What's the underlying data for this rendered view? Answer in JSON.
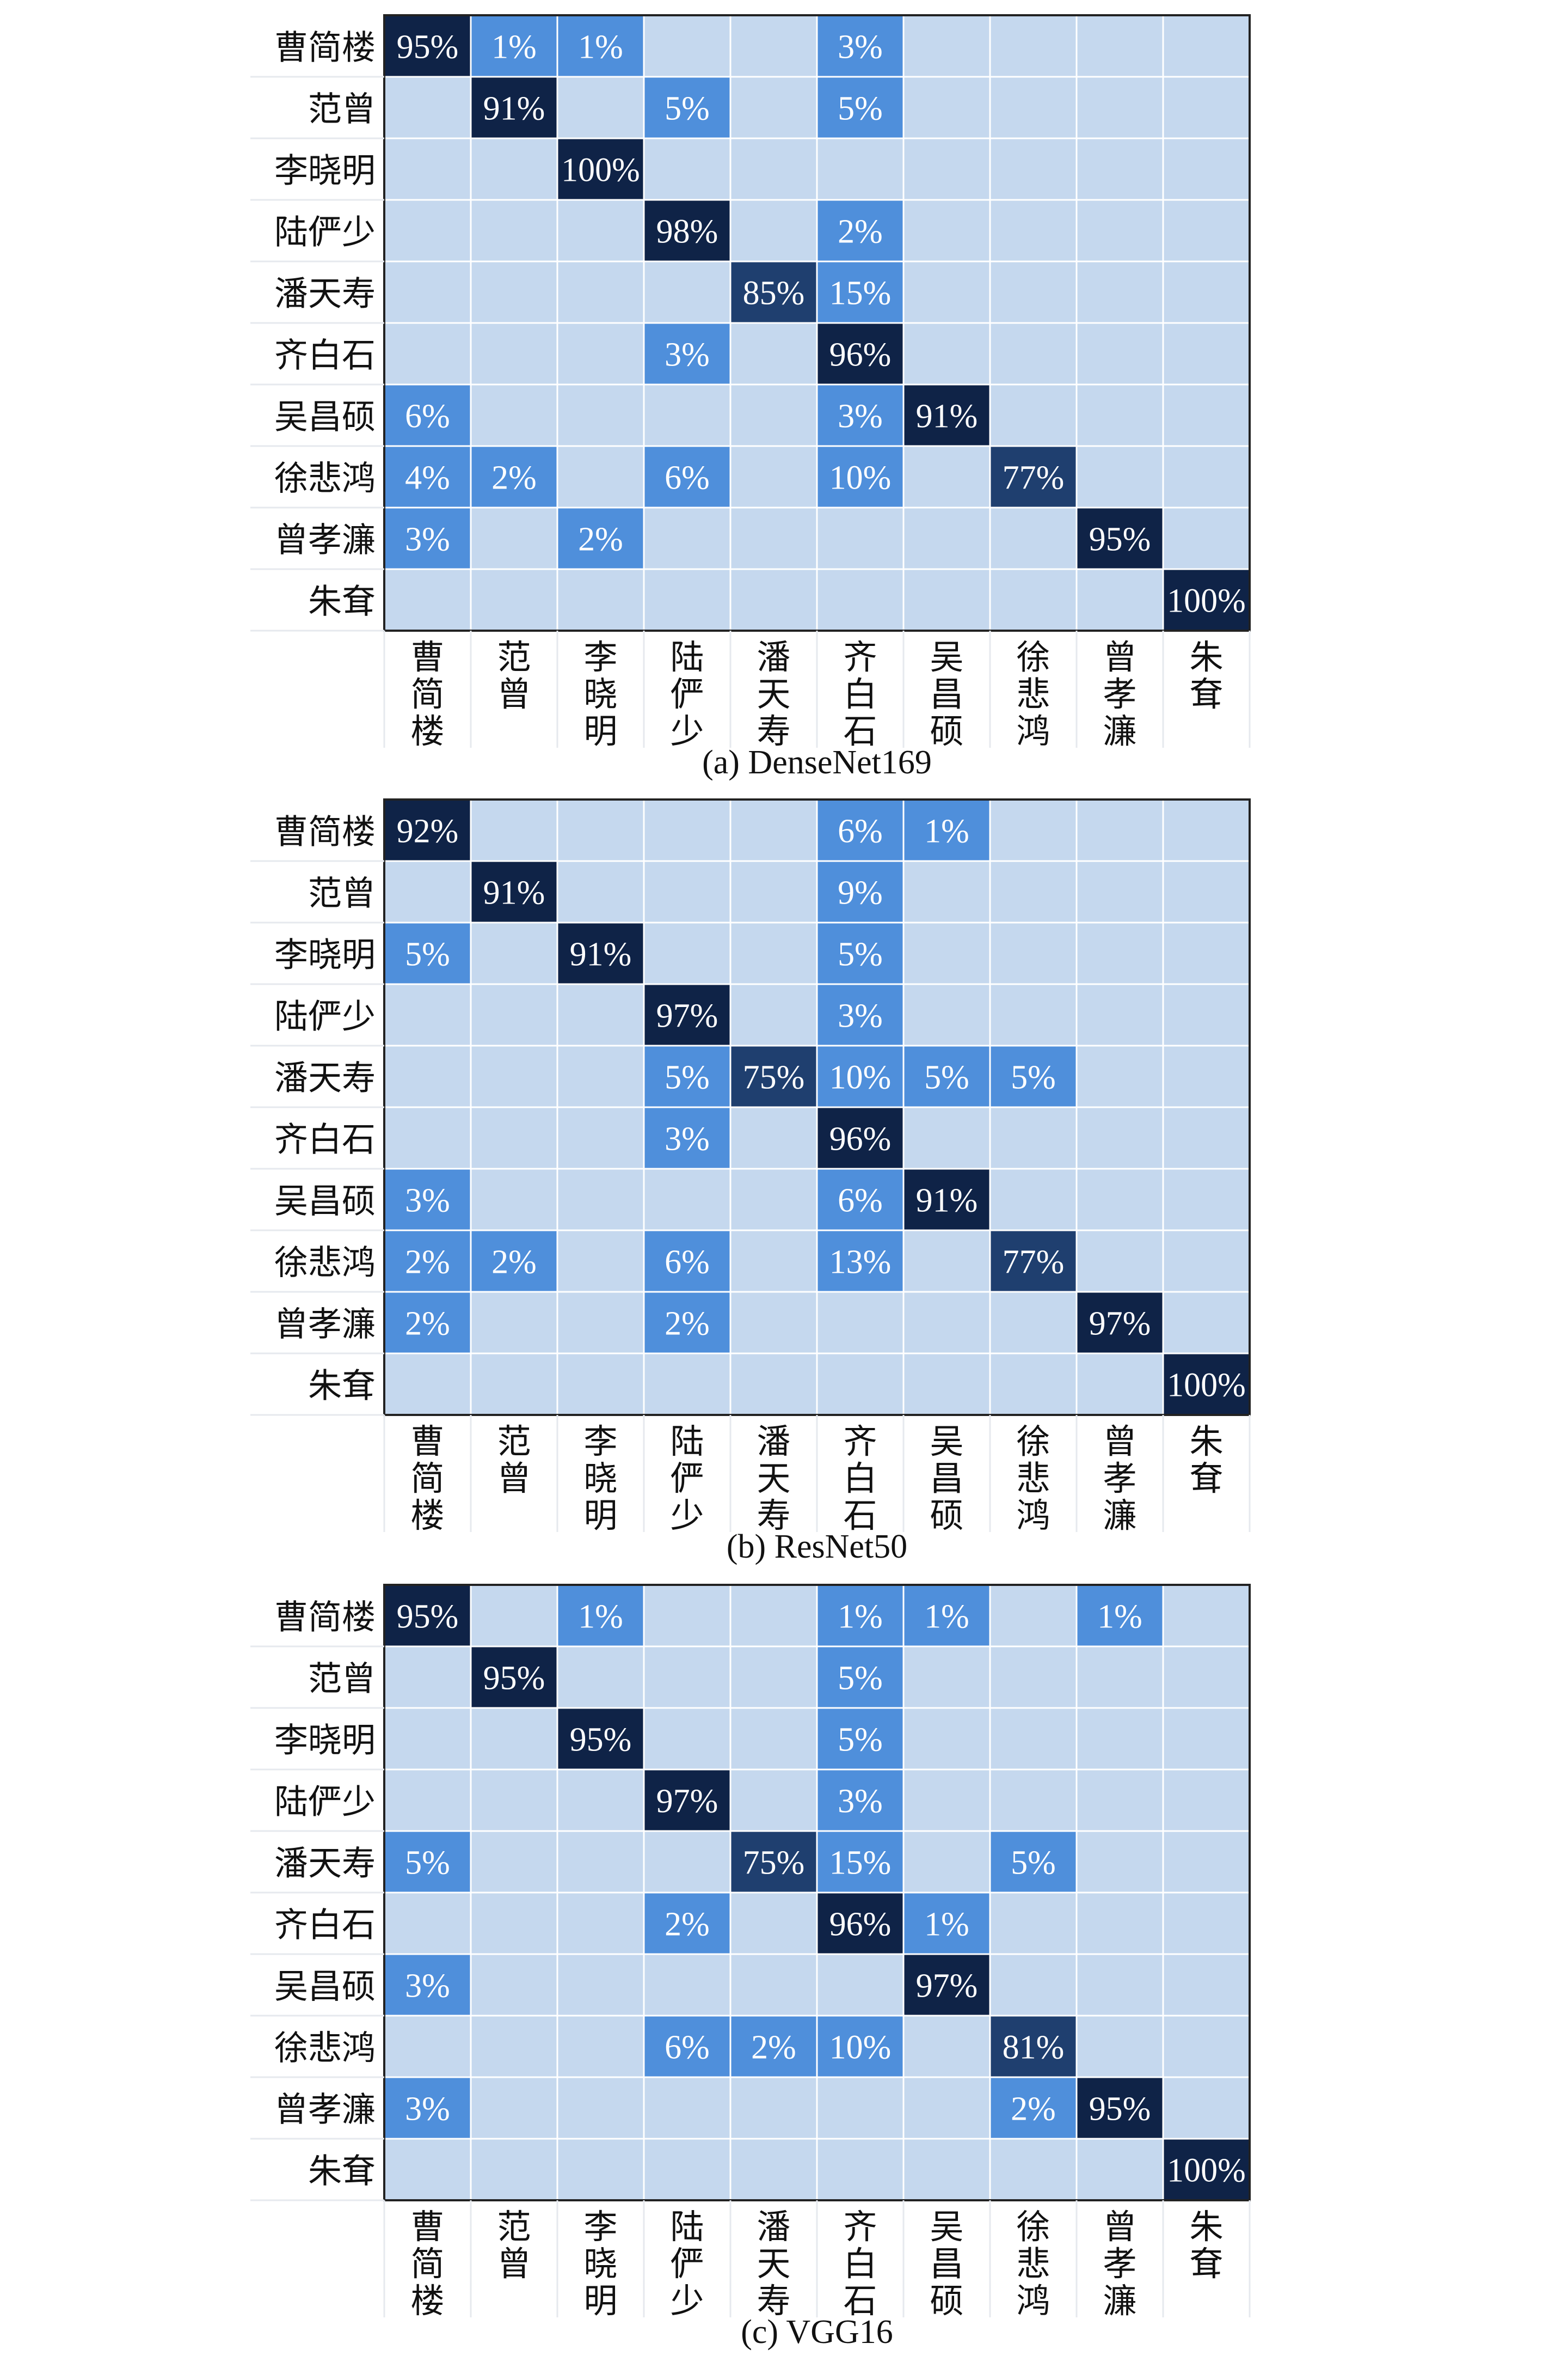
{
  "colors": {
    "background": "#ffffff",
    "cell_empty": "#c5d8ee",
    "cell_low": "#4f8fdb",
    "cell_mid": "#1f3f6f",
    "cell_high": "#0f2347",
    "grid_line": "#ffffff",
    "border": "#222222",
    "value_text": "#ffffff",
    "label_text": "#111111"
  },
  "labels": [
    "曹简楼",
    "范曾",
    "李晓明",
    "陆俨少",
    "潘天寿",
    "齐白石",
    "吴昌硕",
    "徐悲鸿",
    "曾孝濂",
    "朱耷"
  ],
  "chart_data": [
    {
      "type": "heatmap",
      "title": "(a) DenseNet169",
      "rows": [
        "曹简楼",
        "范曾",
        "李晓明",
        "陆俨少",
        "潘天寿",
        "齐白石",
        "吴昌硕",
        "徐悲鸿",
        "曾孝濂",
        "朱耷"
      ],
      "cols": [
        "曹简楼",
        "范曾",
        "李晓明",
        "陆俨少",
        "潘天寿",
        "齐白石",
        "吴昌硕",
        "徐悲鸿",
        "曾孝濂",
        "朱耷"
      ],
      "values": [
        [
          95,
          1,
          1,
          null,
          null,
          3,
          null,
          null,
          null,
          null
        ],
        [
          null,
          91,
          null,
          5,
          null,
          5,
          null,
          null,
          null,
          null
        ],
        [
          null,
          null,
          100,
          null,
          null,
          null,
          null,
          null,
          null,
          null
        ],
        [
          null,
          null,
          null,
          98,
          null,
          2,
          null,
          null,
          null,
          null
        ],
        [
          null,
          null,
          null,
          null,
          85,
          15,
          null,
          null,
          null,
          null
        ],
        [
          null,
          null,
          null,
          3,
          null,
          96,
          null,
          null,
          null,
          null
        ],
        [
          6,
          null,
          null,
          null,
          null,
          3,
          91,
          null,
          null,
          null
        ],
        [
          4,
          2,
          null,
          6,
          null,
          10,
          null,
          77,
          null,
          null
        ],
        [
          3,
          null,
          2,
          null,
          null,
          null,
          null,
          null,
          95,
          null
        ],
        [
          null,
          null,
          null,
          null,
          null,
          null,
          null,
          null,
          null,
          100
        ]
      ]
    },
    {
      "type": "heatmap",
      "title": "(b) ResNet50",
      "rows": [
        "曹简楼",
        "范曾",
        "李晓明",
        "陆俨少",
        "潘天寿",
        "齐白石",
        "吴昌硕",
        "徐悲鸿",
        "曾孝濂",
        "朱耷"
      ],
      "cols": [
        "曹简楼",
        "范曾",
        "李晓明",
        "陆俨少",
        "潘天寿",
        "齐白石",
        "吴昌硕",
        "徐悲鸿",
        "曾孝濂",
        "朱耷"
      ],
      "values": [
        [
          92,
          null,
          null,
          null,
          null,
          6,
          1,
          null,
          null,
          null
        ],
        [
          null,
          91,
          null,
          null,
          null,
          9,
          null,
          null,
          null,
          null
        ],
        [
          5,
          null,
          91,
          null,
          null,
          5,
          null,
          null,
          null,
          null
        ],
        [
          null,
          null,
          null,
          97,
          null,
          3,
          null,
          null,
          null,
          null
        ],
        [
          null,
          null,
          null,
          5,
          75,
          10,
          5,
          5,
          null,
          null
        ],
        [
          null,
          null,
          null,
          3,
          null,
          96,
          null,
          null,
          null,
          null
        ],
        [
          3,
          null,
          null,
          null,
          null,
          6,
          91,
          null,
          null,
          null
        ],
        [
          2,
          2,
          null,
          6,
          null,
          13,
          null,
          77,
          null,
          null
        ],
        [
          2,
          null,
          null,
          2,
          null,
          null,
          null,
          null,
          97,
          null
        ],
        [
          null,
          null,
          null,
          null,
          null,
          null,
          null,
          null,
          null,
          100
        ]
      ]
    },
    {
      "type": "heatmap",
      "title": "(c) VGG16",
      "rows": [
        "曹简楼",
        "范曾",
        "李晓明",
        "陆俨少",
        "潘天寿",
        "齐白石",
        "吴昌硕",
        "徐悲鸿",
        "曾孝濂",
        "朱耷"
      ],
      "cols": [
        "曹简楼",
        "范曾",
        "李晓明",
        "陆俨少",
        "潘天寿",
        "齐白石",
        "吴昌硕",
        "徐悲鸿",
        "曾孝濂",
        "朱耷"
      ],
      "values": [
        [
          95,
          null,
          1,
          null,
          null,
          1,
          1,
          null,
          1,
          null
        ],
        [
          null,
          95,
          null,
          null,
          null,
          5,
          null,
          null,
          null,
          null
        ],
        [
          null,
          null,
          95,
          null,
          null,
          5,
          null,
          null,
          null,
          null
        ],
        [
          null,
          null,
          null,
          97,
          null,
          3,
          null,
          null,
          null,
          null
        ],
        [
          5,
          null,
          null,
          null,
          75,
          15,
          null,
          5,
          null,
          null
        ],
        [
          null,
          null,
          null,
          2,
          null,
          96,
          1,
          null,
          null,
          null
        ],
        [
          3,
          null,
          null,
          null,
          null,
          null,
          97,
          null,
          null,
          null
        ],
        [
          null,
          null,
          null,
          6,
          2,
          10,
          null,
          81,
          null,
          null
        ],
        [
          3,
          null,
          null,
          null,
          null,
          null,
          null,
          2,
          95,
          null
        ],
        [
          null,
          null,
          null,
          null,
          null,
          null,
          null,
          null,
          null,
          100
        ]
      ]
    }
  ]
}
